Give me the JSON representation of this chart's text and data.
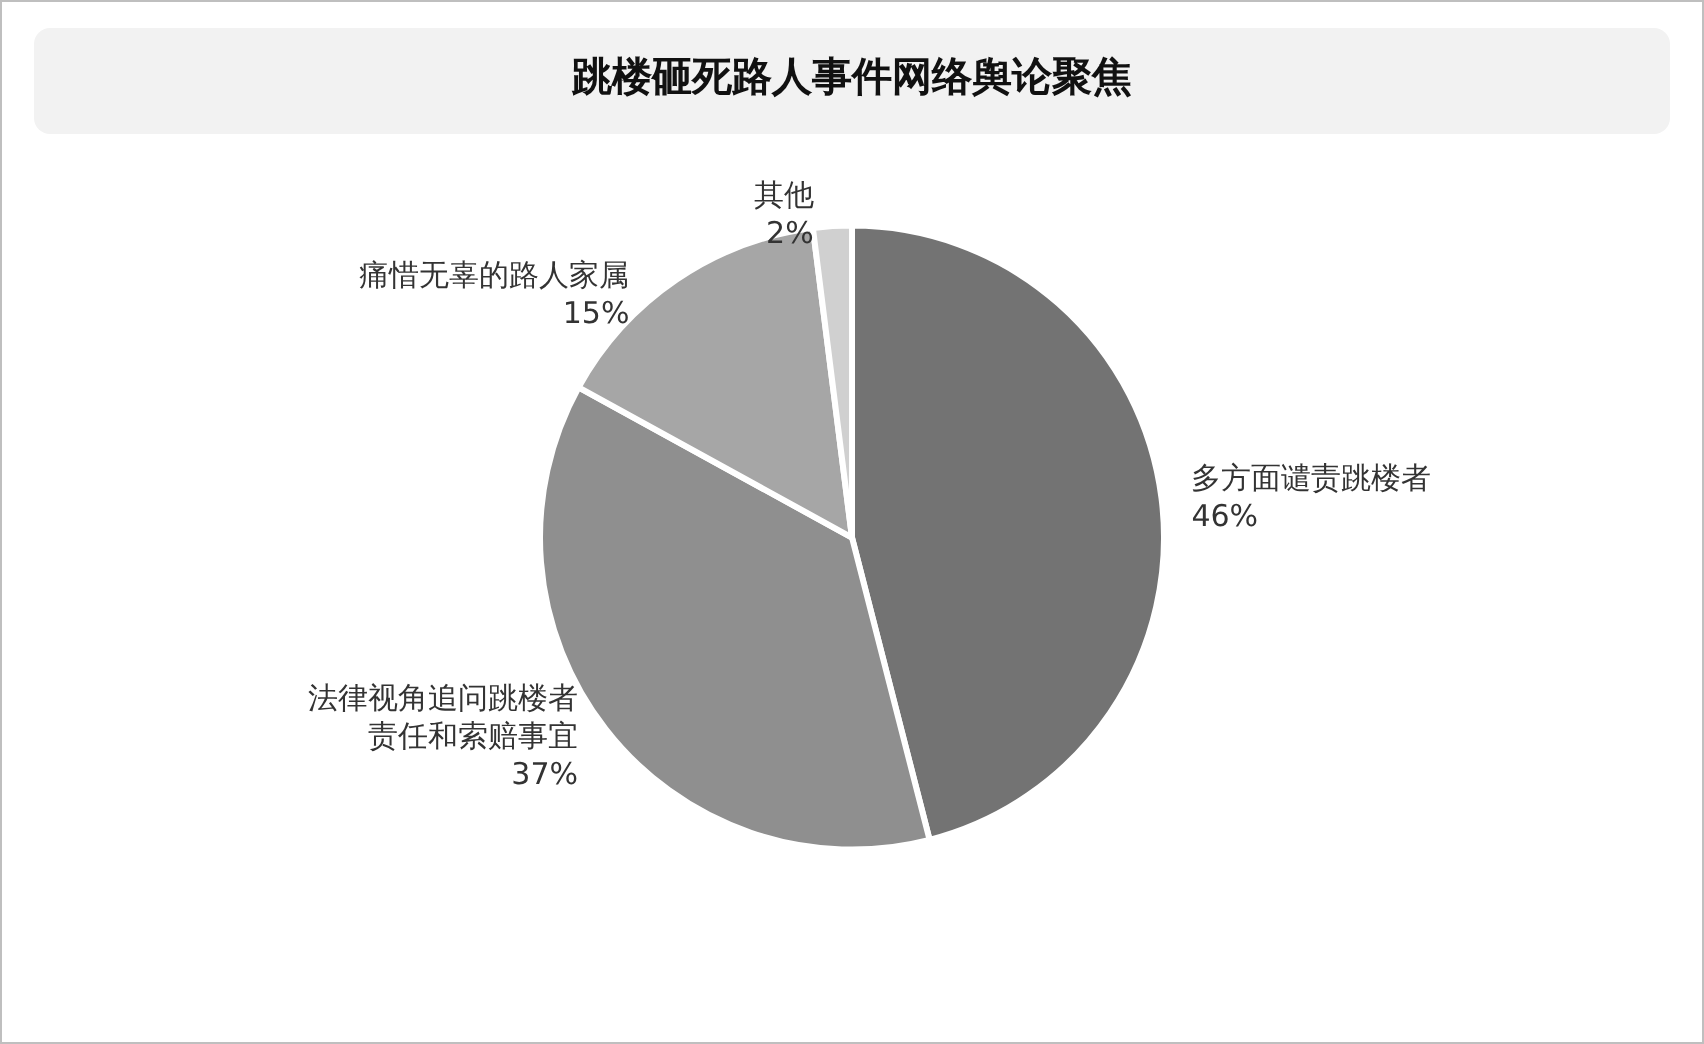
{
  "chart_data": {
    "type": "pie",
    "title": "跳楼砸死路人事件网络舆论聚焦",
    "categories": [
      "多方面谴责跳楼者",
      "法律视角追问跳楼者责任和索赔事宜",
      "痛惜无辜的路人家属",
      "其他"
    ],
    "value_labels": [
      "46%",
      "37%",
      "15%",
      "2%"
    ],
    "values": [
      46,
      37,
      15,
      2
    ],
    "colors": [
      "#737373",
      "#8f8f8f",
      "#a6a6a6",
      "#d0d0d0"
    ],
    "legend": false
  }
}
